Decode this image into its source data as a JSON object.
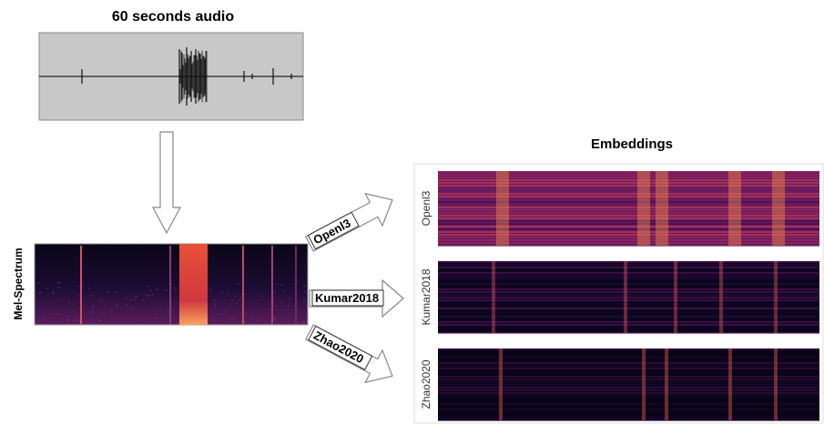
{
  "audio": {
    "title": "60 seconds audio"
  },
  "spectrogram": {
    "label": "Mel-Spectrum"
  },
  "embeddings": {
    "title": "Embeddings",
    "models": [
      {
        "arrow_label": "Openl3",
        "axis_label": "Openl3"
      },
      {
        "arrow_label": "Kumar2018",
        "axis_label": "Kumar2018"
      },
      {
        "arrow_label": "Zhao2020",
        "axis_label": "Zhao2020"
      }
    ]
  }
}
